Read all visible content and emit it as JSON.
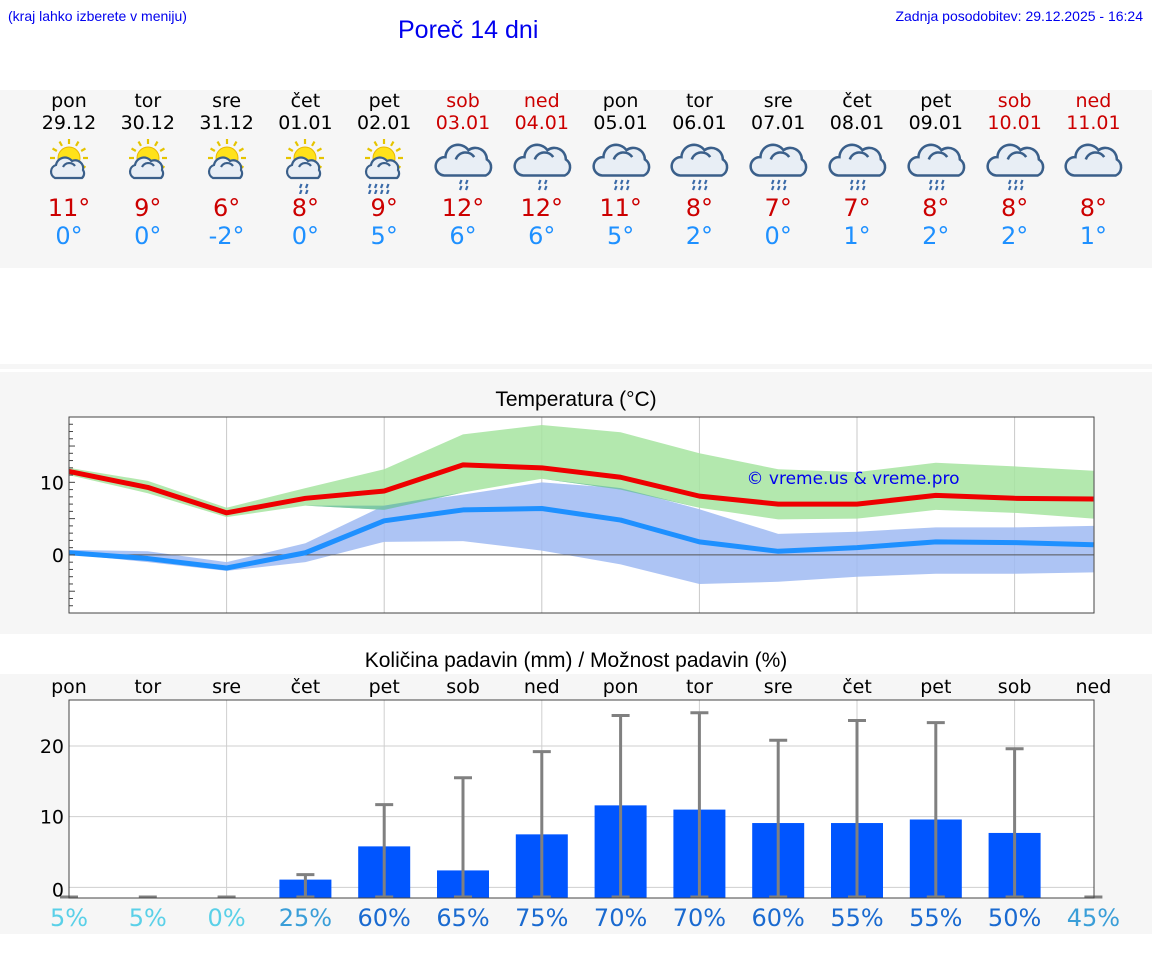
{
  "header": {
    "menu_hint": "(kraj lahko izberete v meniju)",
    "title": "Poreč 14 dni",
    "updated": "Zadnja posodobitev: 29.12.2025 - 16:24"
  },
  "days": [
    {
      "name": "pon",
      "date": "29.12",
      "tmax": "11°",
      "tmin": "0°",
      "weekend": false,
      "icon": "sun-cloud-icon"
    },
    {
      "name": "tor",
      "date": "30.12",
      "tmax": "9°",
      "tmin": "0°",
      "weekend": false,
      "icon": "sun-cloud-icon"
    },
    {
      "name": "sre",
      "date": "31.12",
      "tmax": "6°",
      "tmin": "-2°",
      "weekend": false,
      "icon": "sun-cloud-icon"
    },
    {
      "name": "čet",
      "date": "01.01",
      "tmax": "8°",
      "tmin": "0°",
      "weekend": false,
      "icon": "sun-cloud-light-rain-icon"
    },
    {
      "name": "pet",
      "date": "02.01",
      "tmax": "9°",
      "tmin": "5°",
      "weekend": false,
      "icon": "sun-cloud-rain-icon"
    },
    {
      "name": "sob",
      "date": "03.01",
      "tmax": "12°",
      "tmin": "6°",
      "weekend": true,
      "icon": "cloud-light-rain-icon"
    },
    {
      "name": "ned",
      "date": "04.01",
      "tmax": "12°",
      "tmin": "6°",
      "weekend": true,
      "icon": "cloud-light-rain-icon"
    },
    {
      "name": "pon",
      "date": "05.01",
      "tmax": "11°",
      "tmin": "5°",
      "weekend": false,
      "icon": "cloud-rain-icon"
    },
    {
      "name": "tor",
      "date": "06.01",
      "tmax": "8°",
      "tmin": "2°",
      "weekend": false,
      "icon": "cloud-rain-icon"
    },
    {
      "name": "sre",
      "date": "07.01",
      "tmax": "7°",
      "tmin": "0°",
      "weekend": false,
      "icon": "cloud-rain-icon"
    },
    {
      "name": "čet",
      "date": "08.01",
      "tmax": "7°",
      "tmin": "1°",
      "weekend": false,
      "icon": "cloud-rain-icon"
    },
    {
      "name": "pet",
      "date": "09.01",
      "tmax": "8°",
      "tmin": "2°",
      "weekend": false,
      "icon": "cloud-rain-icon"
    },
    {
      "name": "sob",
      "date": "10.01",
      "tmax": "8°",
      "tmin": "2°",
      "weekend": true,
      "icon": "cloud-rain-icon"
    },
    {
      "name": "ned",
      "date": "11.01",
      "tmax": "8°",
      "tmin": "1°",
      "weekend": true,
      "icon": "cloud-icon"
    }
  ],
  "chart_data": [
    {
      "type": "line",
      "title": "Temperatura (°C)",
      "watermark": "© vreme.us & vreme.pro",
      "ylim": [
        -8,
        19
      ],
      "yticks": [
        0,
        10
      ],
      "series": [
        {
          "name": "max",
          "color": "#ee0000",
          "values": [
            11.5,
            9.3,
            5.8,
            7.8,
            8.8,
            12.4,
            12.0,
            10.7,
            8.1,
            7.0,
            7.0,
            8.2,
            7.8,
            7.7
          ]
        },
        {
          "name": "min",
          "color": "#1e90ff",
          "values": [
            0.3,
            -0.5,
            -1.8,
            0.3,
            4.7,
            6.2,
            6.4,
            4.8,
            1.8,
            0.5,
            1.0,
            1.8,
            1.7,
            1.4
          ]
        },
        {
          "name": "max_range_upper",
          "color": "#aae6a0",
          "values": [
            12.0,
            10.2,
            6.5,
            9.2,
            11.8,
            16.6,
            17.9,
            16.9,
            14.0,
            11.8,
            11.4,
            12.7,
            12.2,
            11.6
          ]
        },
        {
          "name": "max_range_lower",
          "values": [
            11.0,
            8.5,
            5.2,
            6.8,
            6.2,
            8.6,
            10.5,
            9.0,
            6.5,
            4.9,
            5.0,
            6.2,
            5.8,
            5.0
          ]
        },
        {
          "name": "min_range_upper",
          "color": "#acc4f4",
          "values": [
            0.7,
            0.5,
            -1.0,
            1.6,
            6.8,
            8.3,
            10.0,
            9.2,
            6.3,
            2.9,
            3.2,
            3.8,
            3.8,
            4.0
          ]
        },
        {
          "name": "min_range_lower",
          "values": [
            0.1,
            -1.0,
            -2.2,
            -1.0,
            1.8,
            1.9,
            0.6,
            -1.3,
            -4.0,
            -3.7,
            -3.0,
            -2.6,
            -2.6,
            -2.4
          ]
        }
      ]
    },
    {
      "type": "bar",
      "title": "Količina padavin (mm) / Možnost padavin (%)",
      "categories": [
        "pon",
        "tor",
        "sre",
        "čet",
        "pet",
        "sob",
        "ned",
        "pon",
        "tor",
        "sre",
        "čet",
        "pet",
        "sob",
        "ned"
      ],
      "values": [
        0,
        0,
        0,
        1.1,
        5.8,
        2.4,
        7.5,
        11.6,
        11.0,
        9.1,
        9.1,
        9.6,
        7.7,
        0
      ],
      "error_upper": [
        0,
        0,
        0,
        1.8,
        11.7,
        15.5,
        19.2,
        24.3,
        24.7,
        20.8,
        23.6,
        23.3,
        19.6,
        0
      ],
      "probability": [
        "5%",
        "5%",
        "0%",
        "25%",
        "60%",
        "65%",
        "75%",
        "70%",
        "70%",
        "60%",
        "55%",
        "55%",
        "50%",
        "45%"
      ],
      "prob_colors": [
        "#5ad0e8",
        "#5ad0e8",
        "#5ad0e8",
        "#3a9ed8",
        "#1a6ad0",
        "#1a6ad0",
        "#1a6ad0",
        "#1a6ad0",
        "#1a6ad0",
        "#1a6ad0",
        "#1a6ad0",
        "#1a6ad0",
        "#1a6ad0",
        "#3a9ed8"
      ],
      "bar_color": "#0055ff",
      "ylim": [
        -1.5,
        26.5
      ],
      "yticks": [
        "0",
        "10",
        "20"
      ]
    }
  ]
}
